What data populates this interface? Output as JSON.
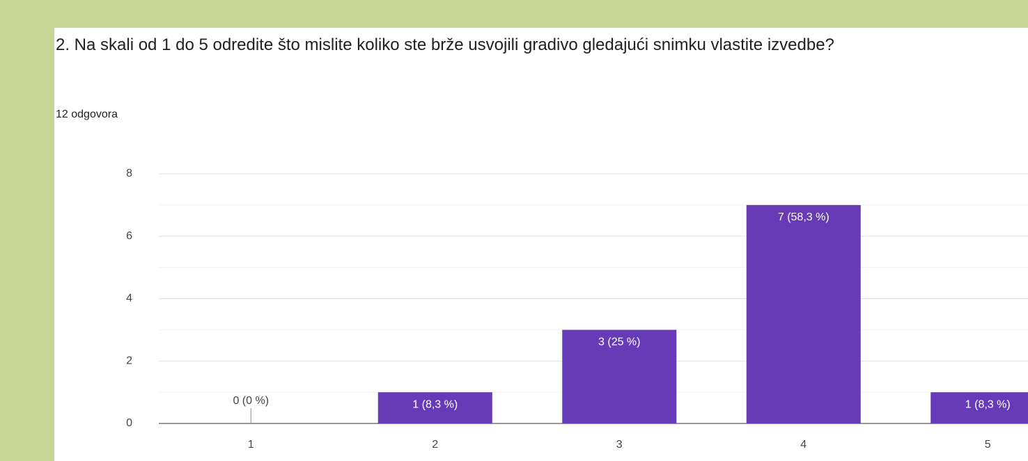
{
  "chart_data": {
    "type": "bar",
    "title": "2. Na skali od 1 do 5 odredite što mislite koliko ste brže usvojili gradivo gledajući snimku vlastite izvedbe?",
    "subtitle": "12 odgovora",
    "categories": [
      "1",
      "2",
      "3",
      "4",
      "5"
    ],
    "values": [
      0,
      1,
      3,
      7,
      1
    ],
    "value_labels": [
      "0 (0 %)",
      "1 (8,3 %)",
      "3 (25 %)",
      "7 (58,3 %)",
      "1 (8,3 %)"
    ],
    "color": "#673ab7",
    "ylim": [
      0,
      8
    ],
    "yticks": [
      0,
      2,
      4,
      6,
      8
    ],
    "minor_yticks": [
      1,
      3,
      5,
      7
    ],
    "grid": true
  }
}
